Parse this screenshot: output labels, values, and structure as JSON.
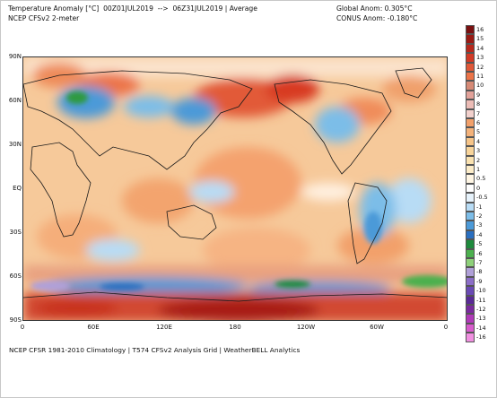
{
  "header": {
    "title_line1": "Temperature Anomaly [°C]  00Z01JUL2019  -->  06Z31JUL2019 | Average",
    "title_line2": "NCEP CFSv2 2-meter",
    "global_anom": "Global Anom: 0.305°C",
    "conus_anom": "CONUS Anom: -0.180°C"
  },
  "axes": {
    "lat_labels": [
      "90N",
      "60N",
      "30N",
      "EQ",
      "30S",
      "60S",
      "90S"
    ],
    "lon_labels": [
      "0",
      "60E",
      "120E",
      "180",
      "120W",
      "60W",
      "0"
    ]
  },
  "footer": "NCEP CFSR 1981-2010 Climatology | T574 CFSv2 Analysis Grid | WeatherBELL Analytics",
  "colorbar": {
    "labels": [
      "16",
      "15",
      "14",
      "13",
      "12",
      "11",
      "10",
      "9",
      "8",
      "7",
      "6",
      "5",
      "4",
      "3",
      "2",
      "1",
      "0.5",
      "0",
      "-0.5",
      "-1",
      "-2",
      "-3",
      "-4",
      "-5",
      "-6",
      "-7",
      "-8",
      "-9",
      "-10",
      "-11",
      "-12",
      "-13",
      "-14",
      "-16"
    ],
    "colors": [
      "#7a1010",
      "#9a1a14",
      "#b8281c",
      "#d23a26",
      "#e05838",
      "#ec7448",
      "#d68a76",
      "#e2a29a",
      "#ecbcb6",
      "#f2d0cc",
      "#f2a06a",
      "#f4b27a",
      "#f6c488",
      "#f8d49a",
      "#fae2b0",
      "#fcecc8",
      "#fff6e4",
      "#ffffff",
      "#e6f2fb",
      "#b8dcf5",
      "#7cbde8",
      "#4c9ad8",
      "#2a6fc0",
      "#1e8a3c",
      "#4cb04e",
      "#8ed07a",
      "#b0a0d8",
      "#8c6ec8",
      "#6a4ab4",
      "#5a2a96",
      "#7a2a9e",
      "#b03ab8",
      "#d85ccc",
      "#f090e0"
    ]
  },
  "map": {
    "ocean_base_color": "#f6c99a",
    "land_stroke": "#1a1a1a"
  }
}
